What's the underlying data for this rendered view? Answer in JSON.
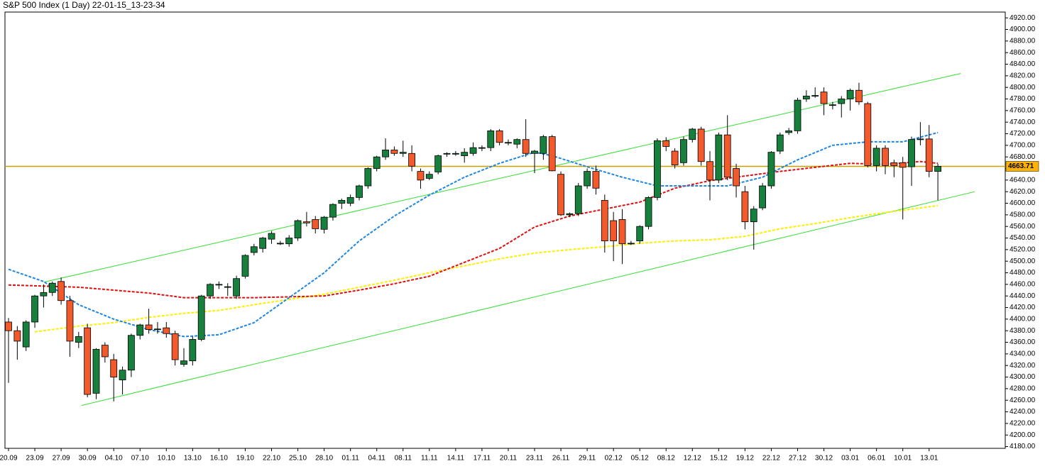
{
  "chart_data": {
    "type": "candlestick",
    "title": "S&P 500 Index (1 Day) 22-01-15_13-23-34",
    "categories": [
      "20.09",
      null,
      null,
      "23.09",
      null,
      null,
      "27.09",
      null,
      null,
      "30.09",
      null,
      null,
      "04.10",
      null,
      null,
      "07.10",
      null,
      null,
      "10.10",
      null,
      null,
      "13.10",
      null,
      null,
      "16.10",
      null,
      null,
      "19.10",
      null,
      null,
      "22.10",
      null,
      null,
      "25.10",
      null,
      null,
      "28.10",
      null,
      null,
      "01.11",
      null,
      null,
      "04.11",
      null,
      null,
      "08.11",
      null,
      null,
      "11.11",
      null,
      null,
      "14.11",
      null,
      null,
      "17.11",
      null,
      null,
      "20.11",
      null,
      null,
      "23.11",
      null,
      null,
      "26.11",
      null,
      null,
      "29.11",
      null,
      null,
      "02.12",
      null,
      null,
      "05.12",
      null,
      null,
      "08.12",
      null,
      null,
      "12.12",
      null,
      null,
      "15.12",
      null,
      null,
      "19.12",
      null,
      null,
      "22.12",
      null,
      null,
      "27.12",
      null,
      null,
      "30.12",
      null,
      null,
      "03.01",
      null,
      null,
      "06.01",
      null,
      null,
      "10.01",
      null,
      null,
      "13.01",
      null
    ],
    "ohlc": [
      [
        4395,
        4402,
        4290,
        4380
      ],
      [
        4380,
        4388,
        4330,
        4362
      ],
      [
        4352,
        4398,
        4345,
        4395
      ],
      [
        4395,
        4442,
        4385,
        4440
      ],
      [
        4440,
        4460,
        4420,
        4446
      ],
      [
        4446,
        4465,
        4440,
        4462
      ],
      [
        4465,
        4472,
        4425,
        4432
      ],
      [
        4432,
        4440,
        4335,
        4362
      ],
      [
        4360,
        4378,
        4350,
        4370
      ],
      [
        4385,
        4392,
        4265,
        4270
      ],
      [
        4272,
        4350,
        4262,
        4348
      ],
      [
        4355,
        4360,
        4325,
        4335
      ],
      [
        4330,
        4340,
        4258,
        4300
      ],
      [
        4295,
        4318,
        4270,
        4312
      ],
      [
        4312,
        4375,
        4300,
        4372
      ],
      [
        4372,
        4392,
        4365,
        4390
      ],
      [
        4390,
        4418,
        4375,
        4382
      ],
      [
        4382,
        4395,
        4375,
        4383
      ],
      [
        4385,
        4395,
        4368,
        4375
      ],
      [
        4375,
        4380,
        4320,
        4330
      ],
      [
        4322,
        4350,
        4318,
        4328
      ],
      [
        4328,
        4370,
        4320,
        4365
      ],
      [
        4365,
        4442,
        4362,
        4440
      ],
      [
        4440,
        4462,
        4435,
        4460
      ],
      [
        4460,
        4465,
        4452,
        4460
      ],
      [
        4456,
        4462,
        4440,
        4456
      ],
      [
        4440,
        4475,
        4435,
        4470
      ],
      [
        4474,
        4512,
        4470,
        4510
      ],
      [
        4515,
        4530,
        4510,
        4525
      ],
      [
        4522,
        4542,
        4515,
        4540
      ],
      [
        4538,
        4552,
        4530,
        4548
      ],
      [
        4530,
        4535,
        4528,
        4531
      ],
      [
        4530,
        4545,
        4525,
        4540
      ],
      [
        4540,
        4572,
        4535,
        4570
      ],
      [
        4568,
        4585,
        4560,
        4566
      ],
      [
        4572,
        4578,
        4548,
        4556
      ],
      [
        4555,
        4578,
        4548,
        4576
      ],
      [
        4576,
        4600,
        4570,
        4598
      ],
      [
        4600,
        4608,
        4590,
        4605
      ],
      [
        4600,
        4615,
        4595,
        4610
      ],
      [
        4610,
        4632,
        4605,
        4630
      ],
      [
        4630,
        4662,
        4625,
        4660
      ],
      [
        4660,
        4682,
        4655,
        4680
      ],
      [
        4680,
        4712,
        4675,
        4692
      ],
      [
        4692,
        4698,
        4682,
        4686
      ],
      [
        4686,
        4708,
        4680,
        4688
      ],
      [
        4686,
        4700,
        4655,
        4664
      ],
      [
        4655,
        4660,
        4625,
        4640
      ],
      [
        4643,
        4655,
        4640,
        4650
      ],
      [
        4654,
        4684,
        4650,
        4682
      ],
      [
        4685,
        4688,
        4680,
        4686
      ],
      [
        4686,
        4690,
        4682,
        4686
      ],
      [
        4682,
        4695,
        4670,
        4688
      ],
      [
        4686,
        4705,
        4682,
        4696
      ],
      [
        4696,
        4700,
        4690,
        4696
      ],
      [
        4696,
        4728,
        4690,
        4725
      ],
      [
        4725,
        4728,
        4700,
        4705
      ],
      [
        4704,
        4710,
        4700,
        4705
      ],
      [
        4702,
        4712,
        4695,
        4710
      ],
      [
        4710,
        4745,
        4680,
        4686
      ],
      [
        4686,
        4692,
        4652,
        4690
      ],
      [
        4686,
        4718,
        4675,
        4715
      ],
      [
        4715,
        4718,
        4655,
        4656
      ],
      [
        4650,
        4655,
        4578,
        4580
      ],
      [
        4580,
        4584,
        4576,
        4582
      ],
      [
        4582,
        4635,
        4578,
        4630
      ],
      [
        4630,
        4660,
        4625,
        4655
      ],
      [
        4655,
        4665,
        4615,
        4626
      ],
      [
        4605,
        4615,
        4515,
        4535
      ],
      [
        4570,
        4585,
        4500,
        4535
      ],
      [
        4572,
        4590,
        4495,
        4530
      ],
      [
        4530,
        4535,
        4528,
        4531
      ],
      [
        4535,
        4562,
        4530,
        4560
      ],
      [
        4560,
        4612,
        4555,
        4610
      ],
      [
        4610,
        4712,
        4605,
        4708
      ],
      [
        4708,
        4714,
        4690,
        4698
      ],
      [
        4690,
        4695,
        4660,
        4666
      ],
      [
        4670,
        4715,
        4665,
        4710
      ],
      [
        4710,
        4730,
        4705,
        4728
      ],
      [
        4728,
        4732,
        4665,
        4672
      ],
      [
        4672,
        4690,
        4605,
        4640
      ],
      [
        4640,
        4722,
        4635,
        4718
      ],
      [
        4718,
        4752,
        4640,
        4645
      ],
      [
        4660,
        4668,
        4610,
        4630
      ],
      [
        4620,
        4630,
        4555,
        4568
      ],
      [
        4568,
        4595,
        4520,
        4590
      ],
      [
        4592,
        4635,
        4588,
        4630
      ],
      [
        4630,
        4690,
        4625,
        4688
      ],
      [
        4690,
        4722,
        4685,
        4718
      ],
      [
        4722,
        4730,
        4718,
        4725
      ],
      [
        4725,
        4782,
        4720,
        4778
      ],
      [
        4780,
        4795,
        4775,
        4785
      ],
      [
        4785,
        4800,
        4782,
        4786
      ],
      [
        4792,
        4800,
        4752,
        4772
      ],
      [
        4770,
        4775,
        4762,
        4770
      ],
      [
        4772,
        4785,
        4748,
        4780
      ],
      [
        4780,
        4798,
        4760,
        4795
      ],
      [
        4795,
        4808,
        4770,
        4775
      ],
      [
        4772,
        4775,
        4662,
        4665
      ],
      [
        4665,
        4700,
        4655,
        4695
      ],
      [
        4695,
        4700,
        4650,
        4665
      ],
      [
        4670,
        4675,
        4645,
        4665
      ],
      [
        4670,
        4680,
        4572,
        4662
      ],
      [
        4663,
        4715,
        4630,
        4710
      ],
      [
        4710,
        4740,
        4700,
        4711
      ],
      [
        4711,
        4735,
        4645,
        4655
      ],
      [
        4655,
        4668,
        4605,
        4663.71
      ]
    ],
    "up_color": "#17803d",
    "down_color": "#f2592b",
    "ylim": [
      4177,
      4930
    ],
    "yticks": [
      {
        "value": 4180,
        "label": "4180.00"
      },
      {
        "value": 4200,
        "label": "4200.00"
      },
      {
        "value": 4220,
        "label": "4220.00"
      },
      {
        "value": 4240,
        "label": "4240.00"
      },
      {
        "value": 4260,
        "label": "4260.00"
      },
      {
        "value": 4280,
        "label": "4280.00"
      },
      {
        "value": 4300,
        "label": "4300.00"
      },
      {
        "value": 4320,
        "label": "4320.00"
      },
      {
        "value": 4340,
        "label": "4340.00"
      },
      {
        "value": 4360,
        "label": "4360.00"
      },
      {
        "value": 4380,
        "label": "4380.00"
      },
      {
        "value": 4400,
        "label": "4400.00"
      },
      {
        "value": 4420,
        "label": "4420.00"
      },
      {
        "value": 4440,
        "label": "4440.00"
      },
      {
        "value": 4460,
        "label": "4460.00"
      },
      {
        "value": 4480,
        "label": "4480.00"
      },
      {
        "value": 4500,
        "label": "4500.00"
      },
      {
        "value": 4520,
        "label": "4520.00"
      },
      {
        "value": 4540,
        "label": "4540.00"
      },
      {
        "value": 4560,
        "label": "4560.00"
      },
      {
        "value": 4580,
        "label": "4580.00"
      },
      {
        "value": 4600,
        "label": "4600.00"
      },
      {
        "value": 4620,
        "label": "4620.00"
      },
      {
        "value": 4640,
        "label": "4640.00"
      },
      {
        "value": 4660,
        "label": "4660.00"
      },
      {
        "value": 4680,
        "label": "4680.00"
      },
      {
        "value": 4700,
        "label": "4700.00"
      },
      {
        "value": 4720,
        "label": "4720.00"
      },
      {
        "value": 4740,
        "label": "4740.00"
      },
      {
        "value": 4760,
        "label": "4760.00"
      },
      {
        "value": 4780,
        "label": "4780.00"
      },
      {
        "value": 4800,
        "label": "4800.00"
      },
      {
        "value": 4820,
        "label": "4820.00"
      },
      {
        "value": 4840,
        "label": "4840.00"
      },
      {
        "value": 4860,
        "label": "4860.00"
      },
      {
        "value": 4880,
        "label": "4880.00"
      },
      {
        "value": 4900,
        "label": "4900.00"
      },
      {
        "value": 4920,
        "label": "4920.00"
      }
    ],
    "overlays": [
      {
        "color": "#1e86e0",
        "dashed": true,
        "x": [
          0,
          4,
          8,
          12,
          16,
          20,
          24,
          28,
          32,
          36,
          40,
          44,
          48,
          52,
          56,
          60,
          62,
          66,
          70,
          74,
          78,
          82,
          86,
          90,
          94,
          98,
          102,
          106
        ],
        "values": [
          4486,
          4465,
          4425,
          4400,
          4382,
          4370,
          4373,
          4394,
          4437,
          4480,
          4535,
          4578,
          4614,
          4645,
          4669,
          4688,
          4682,
          4663,
          4645,
          4630,
          4630,
          4630,
          4645,
          4675,
          4700,
          4706,
          4706,
          4722
        ]
      },
      {
        "color": "#dd1111",
        "dashed": true,
        "x": [
          0,
          8,
          16,
          20,
          28,
          36,
          40,
          44,
          48,
          52,
          56,
          60,
          64,
          68,
          72,
          76,
          80,
          84,
          88,
          92,
          96,
          100,
          104,
          106
        ],
        "values": [
          4459,
          4455,
          4445,
          4437,
          4437,
          4440,
          4450,
          4461,
          4474,
          4498,
          4522,
          4559,
          4578,
          4590,
          4602,
          4626,
          4639,
          4647,
          4655,
          4662,
          4669,
          4667,
          4672,
          4669
        ]
      },
      {
        "color": "#ffee00",
        "dashed": true,
        "x": [
          3,
          8,
          12,
          16,
          20,
          24,
          28,
          32,
          36,
          40,
          44,
          48,
          52,
          56,
          60,
          64,
          68,
          72,
          76,
          80,
          84,
          88,
          92,
          96,
          100,
          104,
          106
        ],
        "values": [
          4378,
          4388,
          4394,
          4403,
          4410,
          4415,
          4425,
          4434,
          4443,
          4455,
          4467,
          4480,
          4492,
          4504,
          4514,
          4520,
          4525,
          4531,
          4535,
          4537,
          4543,
          4556,
          4565,
          4575,
          4584,
          4592,
          4596
        ]
      }
    ],
    "trendlines": [
      {
        "color": "#33dd33",
        "x": [
          4.05,
          108.6
        ],
        "values": [
          4464,
          4824
        ]
      },
      {
        "color": "#33dd33",
        "x": [
          8.3,
          110.2
        ],
        "values": [
          4251,
          4620
        ]
      }
    ],
    "price_line": {
      "value": 4663.71,
      "color": "#c8a000",
      "label_color": "#ffb300"
    }
  }
}
